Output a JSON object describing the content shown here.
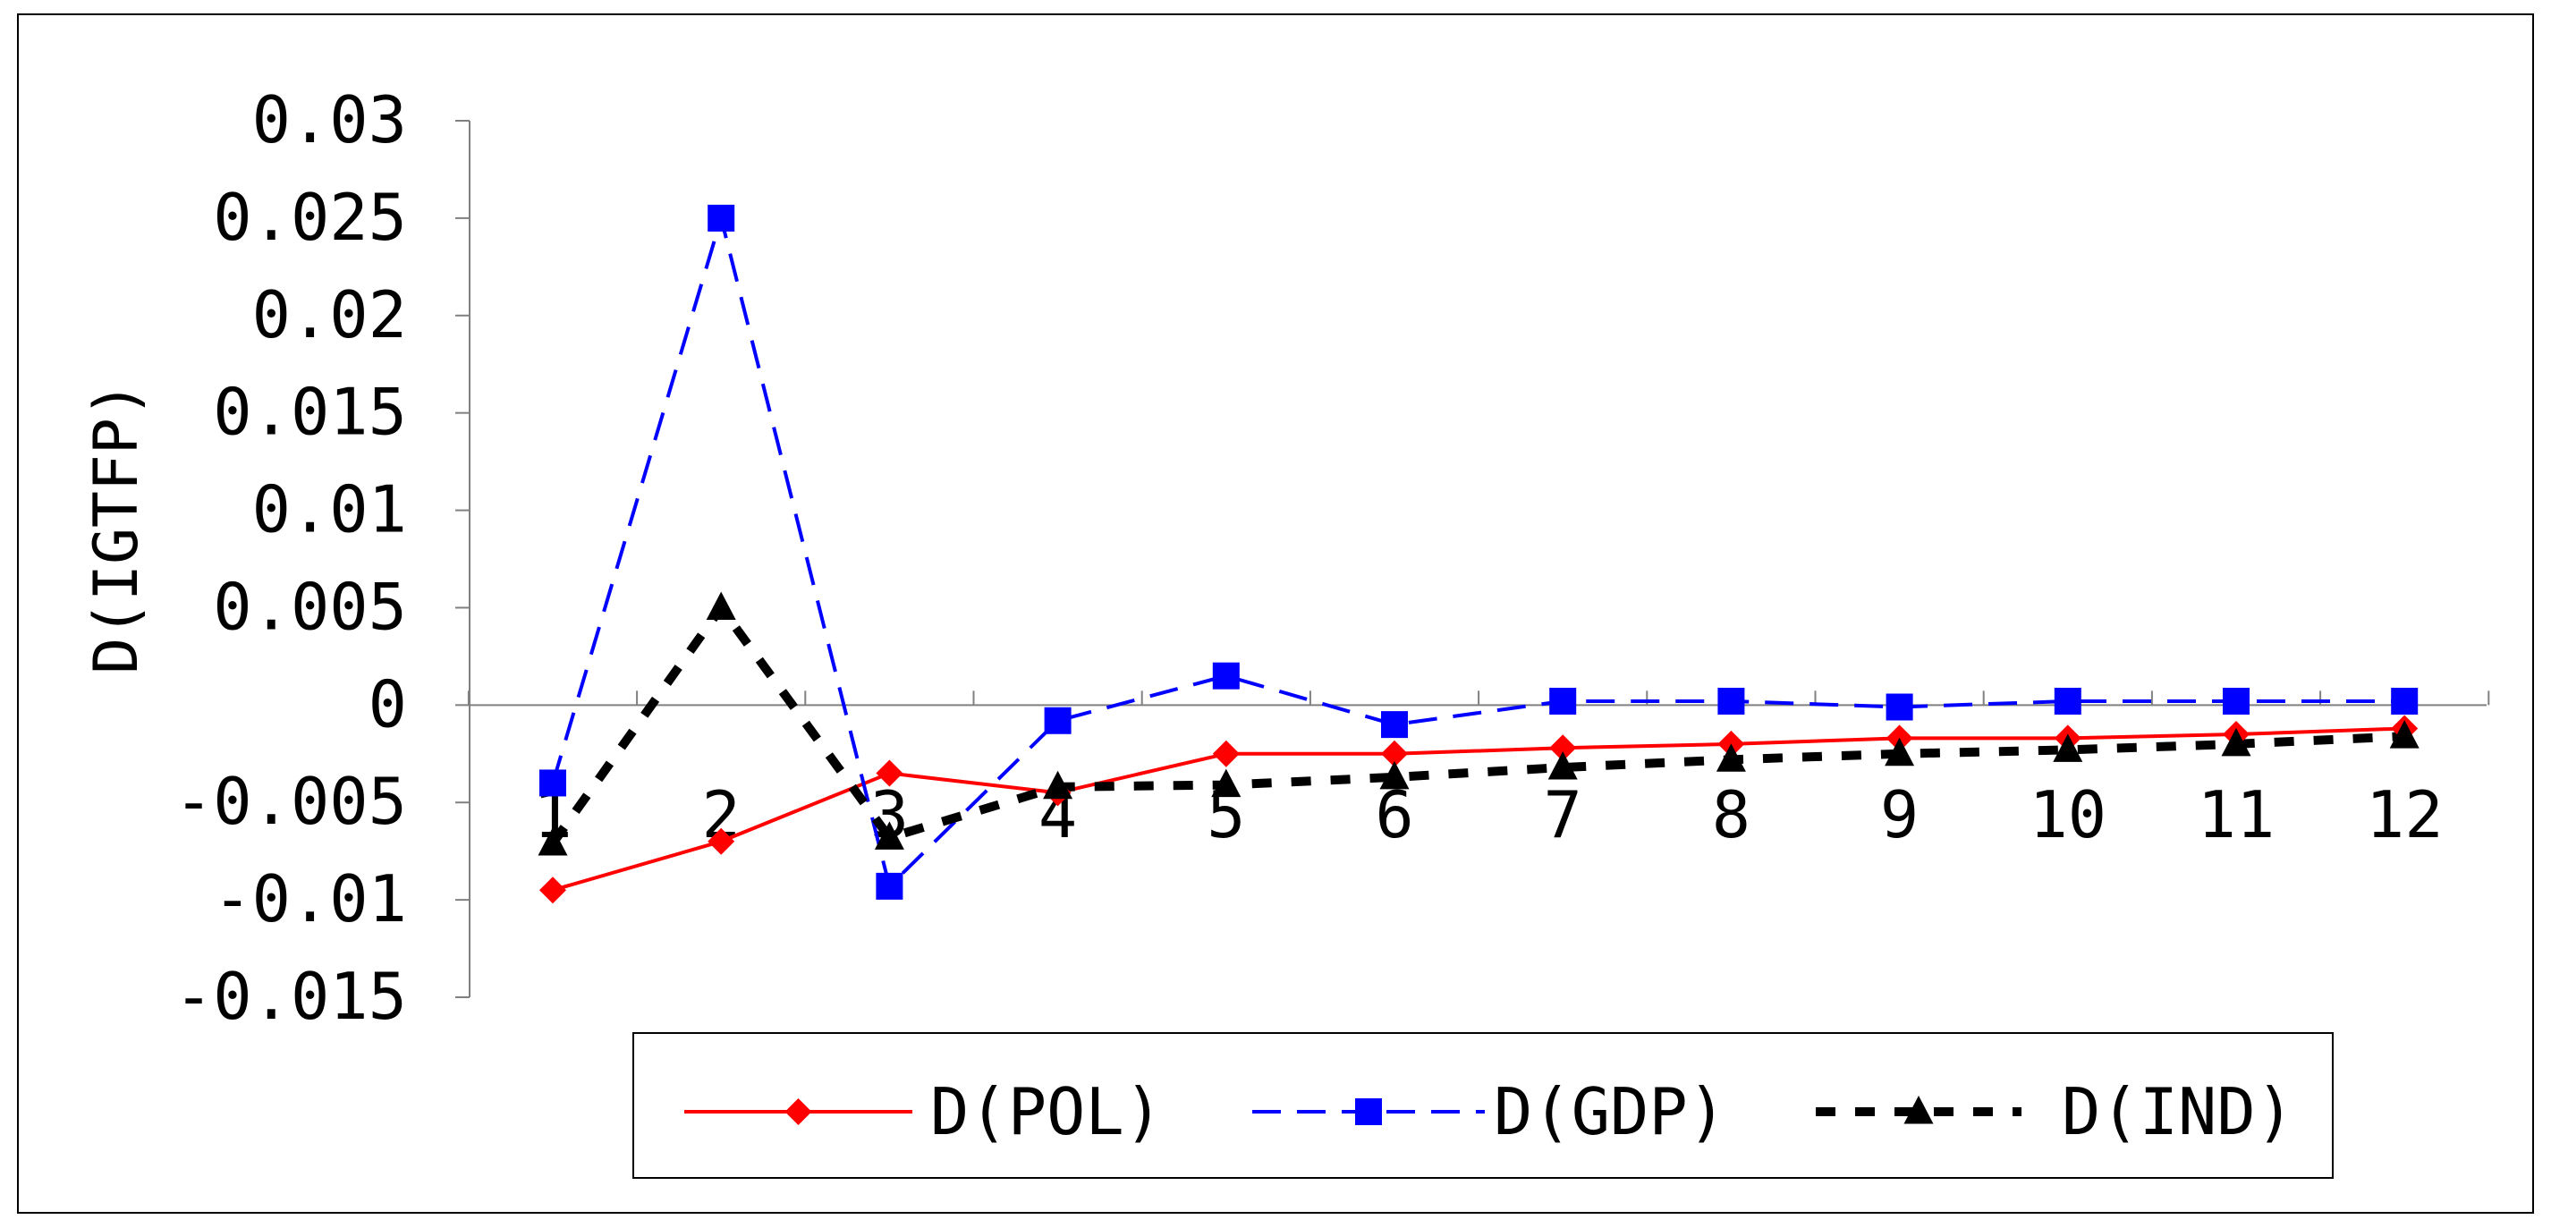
{
  "chart_data": {
    "type": "line",
    "title": "",
    "xlabel": "",
    "ylabel": "D(IGTFP)",
    "categories": [
      "1",
      "2",
      "3",
      "4",
      "5",
      "6",
      "7",
      "8",
      "9",
      "10",
      "11",
      "12"
    ],
    "ylim": [
      -0.015,
      0.03
    ],
    "yticks": [
      0.03,
      0.025,
      0.02,
      0.015,
      0.01,
      0.005,
      0,
      -0.005,
      -0.01,
      -0.015
    ],
    "ytick_labels": [
      "0.03",
      "0.025",
      "0.02",
      "0.015",
      "0.01",
      "0.005",
      "0",
      "-0.005",
      "-0.01",
      "-0.015"
    ],
    "grid": false,
    "legend_position": "bottom",
    "series": [
      {
        "name": "D(POL)",
        "color": "#ff0000",
        "dash": "solid",
        "marker": "diamond",
        "values": [
          -0.0095,
          -0.007,
          -0.0035,
          -0.0045,
          -0.0025,
          -0.0025,
          -0.0022,
          -0.002,
          -0.0017,
          -0.0017,
          -0.0015,
          -0.0012
        ]
      },
      {
        "name": "D(GDP)",
        "color": "#0000ff",
        "dash": "dashed",
        "marker": "square",
        "values": [
          -0.004,
          0.025,
          -0.0093,
          -0.0008,
          0.0015,
          -0.001,
          0.0002,
          0.0002,
          -0.0001,
          0.0002,
          0.0002,
          0.0002
        ]
      },
      {
        "name": "D(IND)",
        "color": "#000000",
        "dash": "dotted-bold",
        "marker": "triangle",
        "values": [
          -0.0071,
          0.005,
          -0.0068,
          -0.0042,
          -0.0041,
          -0.0037,
          -0.0032,
          -0.0028,
          -0.0025,
          -0.0023,
          -0.002,
          -0.0016
        ]
      }
    ]
  }
}
